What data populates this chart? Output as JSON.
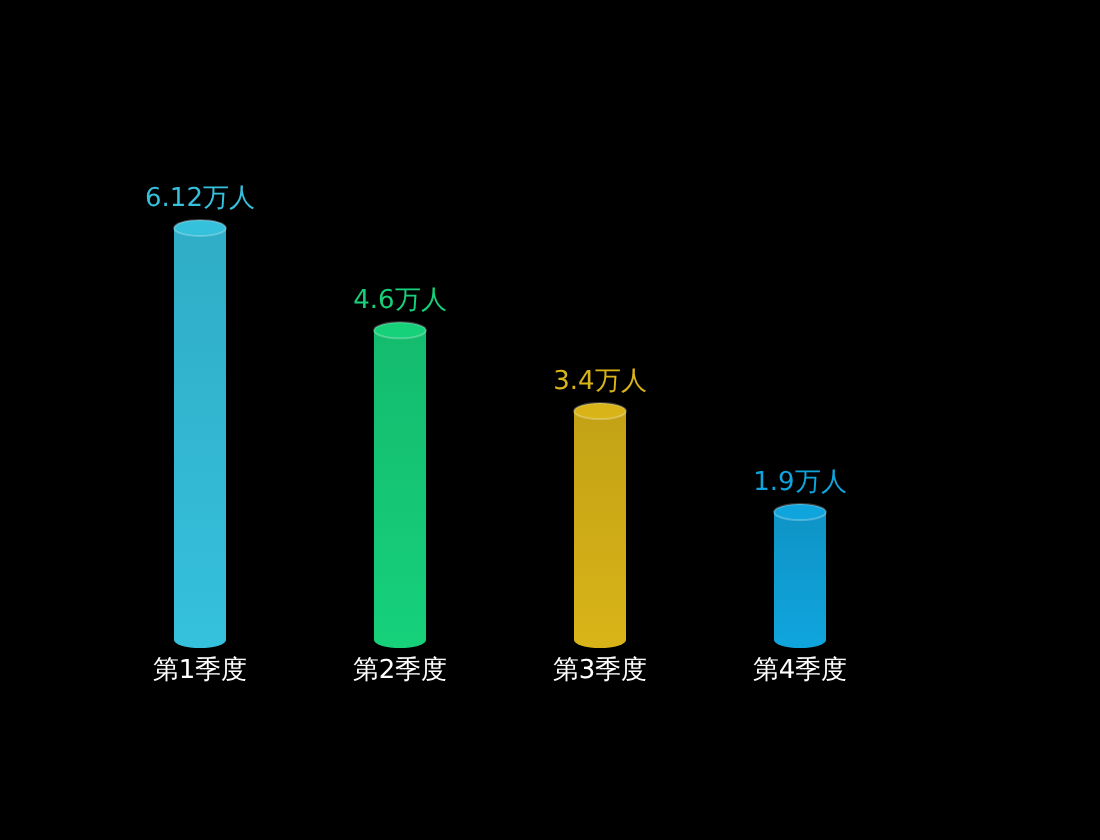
{
  "chart_data": {
    "type": "bar",
    "categories": [
      "第1季度",
      "第2季度",
      "第3季度",
      "第4季度"
    ],
    "values": [
      6.12,
      4.6,
      3.4,
      1.9
    ],
    "value_labels": [
      "6.12万人",
      "4.6万人",
      "3.4万人",
      "1.9万人"
    ],
    "colors": [
      "#35c0dc",
      "#16d07a",
      "#d8b418",
      "#10a4dc"
    ],
    "grid": false
  }
}
